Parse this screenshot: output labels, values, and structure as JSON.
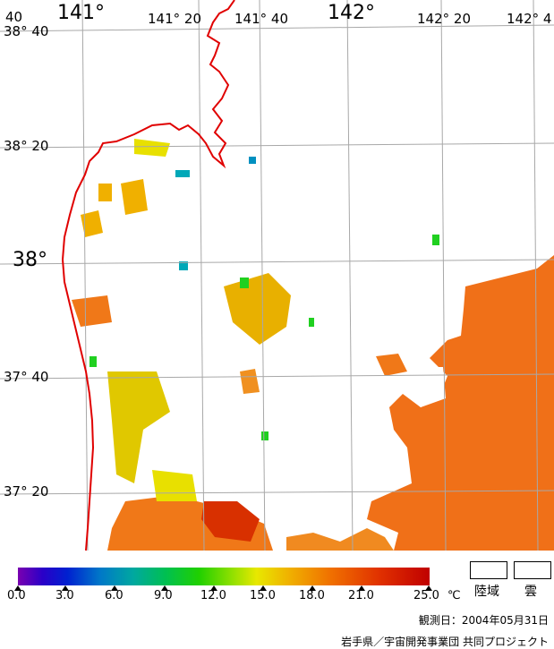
{
  "map": {
    "longitude_labels": [
      {
        "text": "141°",
        "size": "big"
      },
      {
        "text": "141° 20",
        "size": "small"
      },
      {
        "text": "141° 40",
        "size": "small"
      },
      {
        "text": "142°",
        "size": "big"
      },
      {
        "text": "142° 20",
        "size": "small"
      },
      {
        "text": "142° 4",
        "size": "small"
      }
    ],
    "corner_label": "40",
    "latitude_labels": [
      {
        "text": "38° 40",
        "size": "small"
      },
      {
        "text": "38° 20",
        "size": "small"
      },
      {
        "text": "38°",
        "size": "big"
      },
      {
        "text": "37° 40",
        "size": "small"
      },
      {
        "text": "37° 20",
        "size": "small"
      }
    ],
    "colors": {
      "coast": "#e00000",
      "grid": "#a8a8a8"
    }
  },
  "colorbar": {
    "ticks": [
      "0.0",
      "3.0",
      "6.0",
      "9.0",
      "12.0",
      "15.0",
      "18.0",
      "21.0",
      "25.0"
    ],
    "unit": "℃"
  },
  "legend": {
    "land": "陸域",
    "cloud": "雲"
  },
  "observation": {
    "date_text": "観測日：2004年05月31日"
  },
  "credit": "岩手県／宇宙開発事業団 共同プロジェクト"
}
